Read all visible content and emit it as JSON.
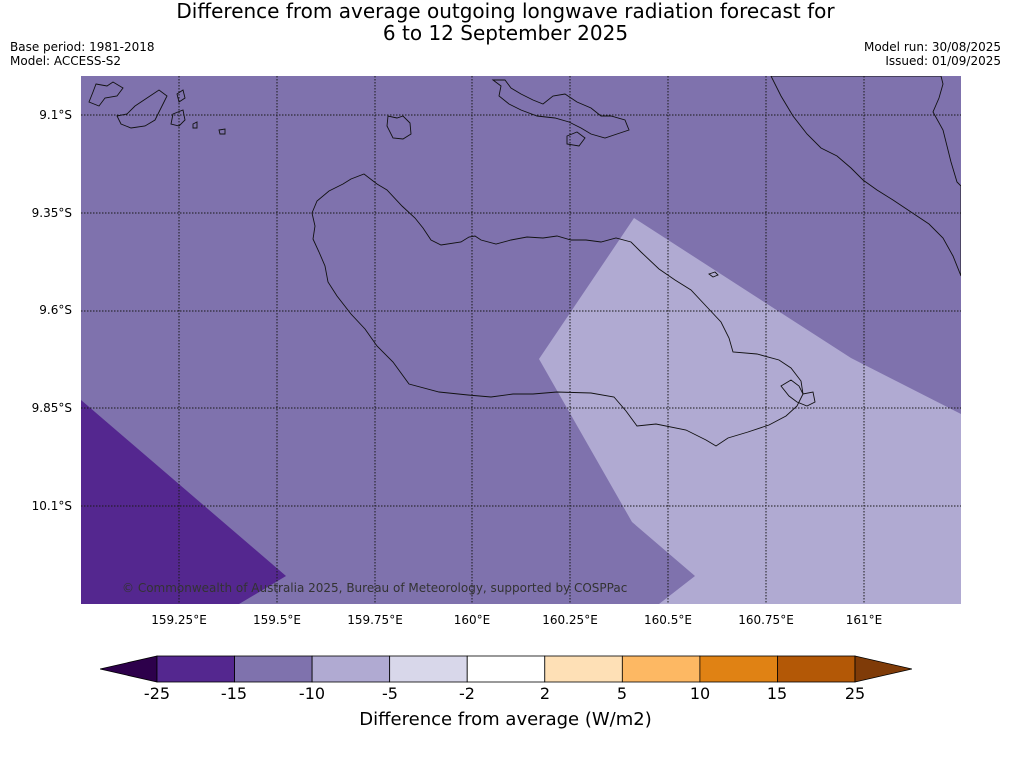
{
  "title_line1": "Difference from average outgoing longwave radiation forecast for",
  "title_line2": "6 to 12 September 2025",
  "base_period": "Base period: 1981-2018",
  "model": "Model: ACCESS-S2",
  "model_run": "Model run: 30/08/2025",
  "issued": "Issued: 01/09/2025",
  "copyright": "© Commonwealth of Australia 2025, Bureau of Meteorology, supported by COSPPac",
  "lat_labels": [
    "9.1°S",
    "9.35°S",
    "9.6°S",
    "9.85°S",
    "10.1°S"
  ],
  "lon_labels": [
    "159.25°E",
    "159.5°E",
    "159.75°E",
    "160°E",
    "160.25°E",
    "160.5°E",
    "160.75°E",
    "161°E"
  ],
  "colorbar": {
    "title": "Difference from average (W/m2)",
    "tick_labels": [
      "-25",
      "-15",
      "-10",
      "-5",
      "-2",
      "2",
      "5",
      "10",
      "15",
      "25"
    ],
    "colors": [
      "#54278f",
      "#7f72ad",
      "#b0aad2",
      "#d8d7ea",
      "#ffffff",
      "#fee0b6",
      "#fdb863",
      "#e08214",
      "#b35806"
    ],
    "under_color": "#2d004b",
    "over_color": "#7f3b08"
  },
  "map_colors": {
    "band_minus15_to_minus10": "#7f72ad",
    "band_minus10_to_minus5": "#b0aad2",
    "band_minus25_to_minus15": "#54278f"
  }
}
